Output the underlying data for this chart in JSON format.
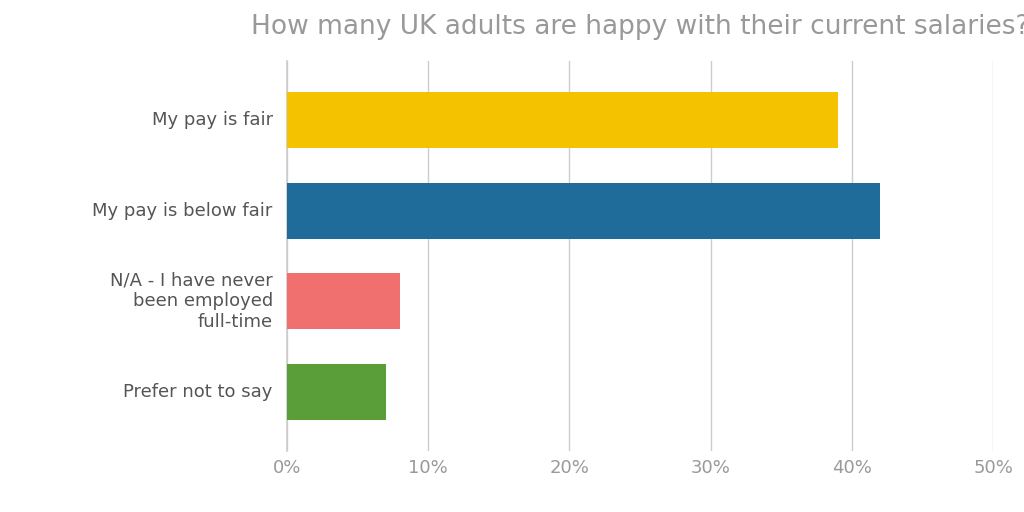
{
  "title": "How many UK adults are happy with their current salaries?",
  "categories": [
    "My pay is fair",
    "My pay is below fair",
    "N/A - I have never\nbeen employed\nfull-time",
    "Prefer not to say"
  ],
  "values": [
    39,
    42,
    8,
    7
  ],
  "colors": [
    "#F5C200",
    "#1F6B9A",
    "#F07070",
    "#5A9E3A"
  ],
  "xlim": [
    0,
    50
  ],
  "xticks": [
    0,
    10,
    20,
    30,
    40,
    50
  ],
  "background_color": "#ffffff",
  "title_color": "#999999",
  "title_fontsize": 19,
  "label_fontsize": 13,
  "tick_fontsize": 13,
  "bar_height": 0.62,
  "gridline_color": "#cccccc",
  "label_color": "#555555",
  "tick_color": "#999999"
}
